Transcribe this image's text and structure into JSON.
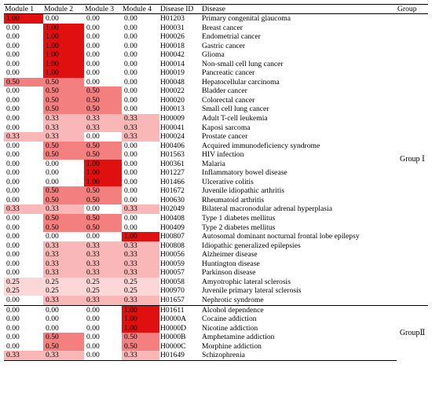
{
  "headers": [
    "Module 1",
    "Module 2",
    "Module 3",
    "Module 4",
    "Disease ID",
    "Disease",
    "",
    "Group"
  ],
  "groups": [
    {
      "label": "Group Ⅰ",
      "rows": [
        {
          "m": [
            "1.00",
            "0.00",
            "0.00",
            "0.00"
          ],
          "id": "H01203",
          "disease": "Primary congenital glaucoma"
        },
        {
          "m": [
            "0.00",
            "1.00",
            "0.00",
            "0.00"
          ],
          "id": "H00031",
          "disease": "Breast cancer"
        },
        {
          "m": [
            "0.00",
            "1.00",
            "0.00",
            "0.00"
          ],
          "id": "H00026",
          "disease": "Endometrial cancer"
        },
        {
          "m": [
            "0.00",
            "1.00",
            "0.00",
            "0.00"
          ],
          "id": "H00018",
          "disease": "Gastric cancer"
        },
        {
          "m": [
            "0.00",
            "1.00",
            "0.00",
            "0.00"
          ],
          "id": "H00042",
          "disease": "Glioma"
        },
        {
          "m": [
            "0.00",
            "1.00",
            "0.00",
            "0.00"
          ],
          "id": "H00014",
          "disease": "Non-small cell lung cancer"
        },
        {
          "m": [
            "0.00",
            "1.00",
            "0.00",
            "0.00"
          ],
          "id": "H00019",
          "disease": "Pancreatic cancer"
        },
        {
          "m": [
            "0.50",
            "0.50",
            "0.00",
            "0.00"
          ],
          "id": "H00048",
          "disease": "Hepatocellular carcinoma"
        },
        {
          "m": [
            "0.00",
            "0.50",
            "0.50",
            "0.00"
          ],
          "id": "H00022",
          "disease": "Bladder cancer"
        },
        {
          "m": [
            "0.00",
            "0.50",
            "0.50",
            "0.00"
          ],
          "id": "H00020",
          "disease": "Colorectal cancer"
        },
        {
          "m": [
            "0.00",
            "0.50",
            "0.50",
            "0.00"
          ],
          "id": "H00013",
          "disease": "Small cell lung cancer"
        },
        {
          "m": [
            "0.00",
            "0.33",
            "0.33",
            "0.33"
          ],
          "id": "H00009",
          "disease": "Adult T-cell leukemia"
        },
        {
          "m": [
            "0.00",
            "0.33",
            "0.33",
            "0.33"
          ],
          "id": "H00041",
          "disease": "Kaposi sarcoma"
        },
        {
          "m": [
            "0.33",
            "0.33",
            "0.00",
            "0.33"
          ],
          "id": "H00024",
          "disease": "Prostate cancer"
        },
        {
          "m": [
            "0.00",
            "0.50",
            "0.50",
            "0.00"
          ],
          "id": "H00406",
          "disease": "Acquired immunodeficiency syndrome"
        },
        {
          "m": [
            "0.00",
            "0.50",
            "0.50",
            "0.00"
          ],
          "id": "H01563",
          "disease": "HIV infection"
        },
        {
          "m": [
            "0.00",
            "0.00",
            "1.00",
            "0.00"
          ],
          "id": "H00361",
          "disease": "Malaria"
        },
        {
          "m": [
            "0.00",
            "0.00",
            "1.00",
            "0.00"
          ],
          "id": "H01227",
          "disease": "Inflammatory bowel disease"
        },
        {
          "m": [
            "0.00",
            "0.00",
            "1.00",
            "0.00"
          ],
          "id": "H01466",
          "disease": "Ulcerative colitis"
        },
        {
          "m": [
            "0.00",
            "0.50",
            "0.50",
            "0.00"
          ],
          "id": "H01672",
          "disease": "Juvenile idiopathic arthritis"
        },
        {
          "m": [
            "0.00",
            "0.50",
            "0.50",
            "0.00"
          ],
          "id": "H00630",
          "disease": "Rheumatoid arthritis"
        },
        {
          "m": [
            "0.33",
            "0.33",
            "0.00",
            "0.33"
          ],
          "id": "H02049",
          "disease": "Bilateral macronodular adrenal hyperplasia"
        },
        {
          "m": [
            "0.00",
            "0.50",
            "0.50",
            "0.00"
          ],
          "id": "H00408",
          "disease": "Type 1 diabetes mellitus"
        },
        {
          "m": [
            "0.00",
            "0.50",
            "0.50",
            "0.00"
          ],
          "id": "H00409",
          "disease": "Type 2 diabetes mellitus"
        },
        {
          "m": [
            "0.00",
            "0.00",
            "0.00",
            "1.00"
          ],
          "id": "H00807",
          "disease": "Autosomal dominant nocturnal frontal lobe epilepsy"
        },
        {
          "m": [
            "0.00",
            "0.33",
            "0.33",
            "0.33"
          ],
          "id": "H00808",
          "disease": "Idiopathic generalized epilepsies"
        },
        {
          "m": [
            "0.00",
            "0.33",
            "0.33",
            "0.33"
          ],
          "id": "H00056",
          "disease": "Alzheimer disease"
        },
        {
          "m": [
            "0.00",
            "0.33",
            "0.33",
            "0.33"
          ],
          "id": "H00059",
          "disease": "Huntington disease"
        },
        {
          "m": [
            "0.00",
            "0.33",
            "0.33",
            "0.33"
          ],
          "id": "H00057",
          "disease": "Parkinson disease"
        },
        {
          "m": [
            "0.25",
            "0.25",
            "0.25",
            "0.25"
          ],
          "id": "H00058",
          "disease": "Amyotrophic lateral sclerosis"
        },
        {
          "m": [
            "0.25",
            "0.25",
            "0.25",
            "0.25"
          ],
          "id": "H00970",
          "disease": "Juvenile primary lateral sclerosis"
        },
        {
          "m": [
            "0.00",
            "0.33",
            "0.33",
            "0.33"
          ],
          "id": "H01657",
          "disease": "Nephrotic syndrome"
        }
      ]
    },
    {
      "label": "GroupⅡ",
      "rows": [
        {
          "m": [
            "0.00",
            "0.00",
            "0.00",
            "1.00"
          ],
          "id": "H01611",
          "disease": "Alcohol dependence"
        },
        {
          "m": [
            "0.00",
            "0.00",
            "0.00",
            "1.00"
          ],
          "id": "H0000A",
          "disease": "Cocaine addiction"
        },
        {
          "m": [
            "0.00",
            "0.00",
            "0.00",
            "1.00"
          ],
          "id": "H0000D",
          "disease": "Nicotine addiction"
        },
        {
          "m": [
            "0.00",
            "0.50",
            "0.00",
            "0.50"
          ],
          "id": "H0000B",
          "disease": "Amphetamine addiction"
        },
        {
          "m": [
            "0.00",
            "0.50",
            "0.00",
            "0.50"
          ],
          "id": "H0000C",
          "disease": "Morphine addiction"
        },
        {
          "m": [
            "0.33",
            "0.33",
            "0.00",
            "0.33"
          ],
          "id": "H01649",
          "disease": "Schizophrenia"
        }
      ]
    }
  ],
  "colors": {
    "level_0": "#ffffff",
    "level_0.25": "#fcd7d7",
    "level_0.33": "#f9b7b7",
    "level_0.50": "#f47f7f",
    "level_1.00": "#e01010"
  }
}
